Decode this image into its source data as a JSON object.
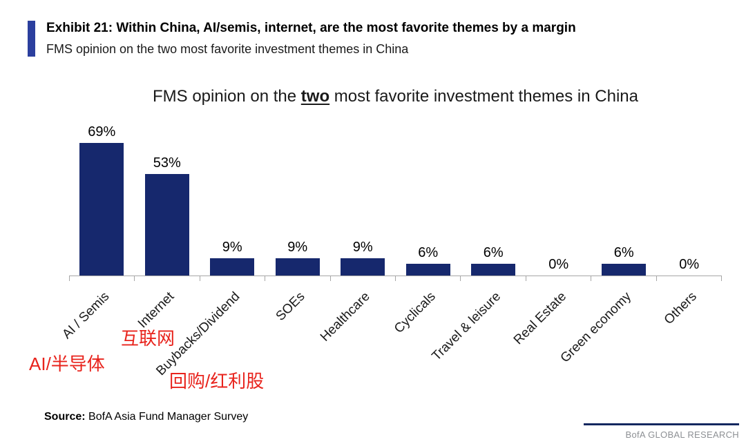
{
  "header": {
    "exhibit_title": "Exhibit 21: Within China, AI/semis, internet, are the most favorite themes by a margin",
    "subtitle": "FMS opinion on the two most favorite investment themes in China"
  },
  "chart_data": {
    "type": "bar",
    "title": "FMS opinion on the two most favorite investment themes in China",
    "title_parts": {
      "prefix": "FMS opinion on the ",
      "underlined": "two",
      "suffix": " most favorite investment themes in China"
    },
    "categories": [
      "AI / Semis",
      "Internet",
      "Buybacks/Dividend",
      "SOEs",
      "Healthcare",
      "Cyclicals",
      "Travel & leisure",
      "Real Estate",
      "Green economy",
      "Others"
    ],
    "values": [
      69,
      53,
      9,
      9,
      9,
      6,
      6,
      0,
      6,
      0
    ],
    "value_labels": [
      "69%",
      "53%",
      "9%",
      "9%",
      "9%",
      "6%",
      "6%",
      "0%",
      "6%",
      "0%"
    ],
    "ylabel": "",
    "xlabel": "",
    "ylim": [
      0,
      75
    ],
    "grid": false,
    "legend": "none",
    "bar_color": "#16286d"
  },
  "annotations": [
    {
      "text": "互联网",
      "target": "Internet",
      "color": "#e8231c"
    },
    {
      "text": "AI/半导体",
      "target": "AI / Semis",
      "color": "#e8231c"
    },
    {
      "text": "回购/红利股",
      "target": "Buybacks/Dividend",
      "color": "#e8231c"
    }
  ],
  "source": {
    "label": "Source:",
    "text": " BofA Asia Fund Manager Survey"
  },
  "footer": {
    "brand": "BofA GLOBAL RESEARCH"
  }
}
